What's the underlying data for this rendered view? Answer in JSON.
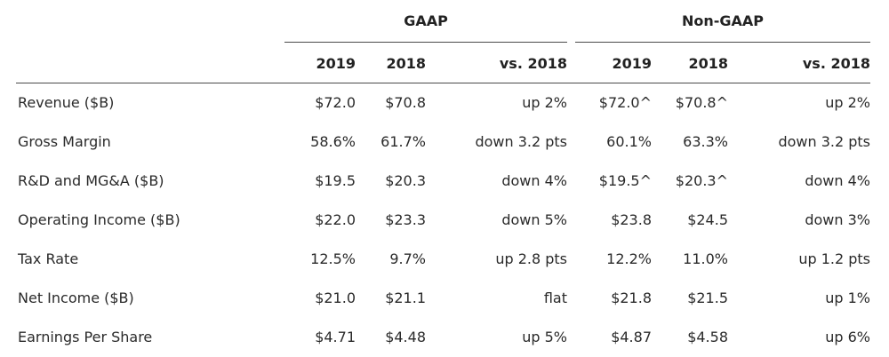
{
  "groups": {
    "gaap": "GAAP",
    "non_gaap": "Non-GAAP"
  },
  "columns": [
    "2019",
    "2018",
    "vs. 2018",
    "2019",
    "2018",
    "vs. 2018"
  ],
  "rows": [
    {
      "label": "Revenue ($B)",
      "values": [
        "$72.0",
        "$70.8",
        "up 2%",
        "$72.0^",
        "$70.8^",
        "up 2%"
      ]
    },
    {
      "label": "Gross Margin",
      "values": [
        "58.6%",
        "61.7%",
        "down 3.2 pts",
        "60.1%",
        "63.3%",
        "down 3.2 pts"
      ]
    },
    {
      "label": "R&D and MG&A ($B)",
      "values": [
        "$19.5",
        "$20.3",
        "down 4%",
        "$19.5^",
        "$20.3^",
        "down 4%"
      ]
    },
    {
      "label": "Operating Income ($B)",
      "values": [
        "$22.0",
        "$23.3",
        "down 5%",
        "$23.8",
        "$24.5",
        "down 3%"
      ]
    },
    {
      "label": "Tax Rate",
      "values": [
        "12.5%",
        "9.7%",
        "up 2.8 pts",
        "12.2%",
        "11.0%",
        "up 1.2 pts"
      ]
    },
    {
      "label": "Net Income ($B)",
      "values": [
        "$21.0",
        "$21.1",
        "flat",
        "$21.8",
        "$21.5",
        "up 1%"
      ]
    },
    {
      "label": "Earnings Per Share",
      "values": [
        "$4.71",
        "$4.48",
        "up 5%",
        "$4.87",
        "$4.58",
        "up 6%"
      ]
    }
  ]
}
